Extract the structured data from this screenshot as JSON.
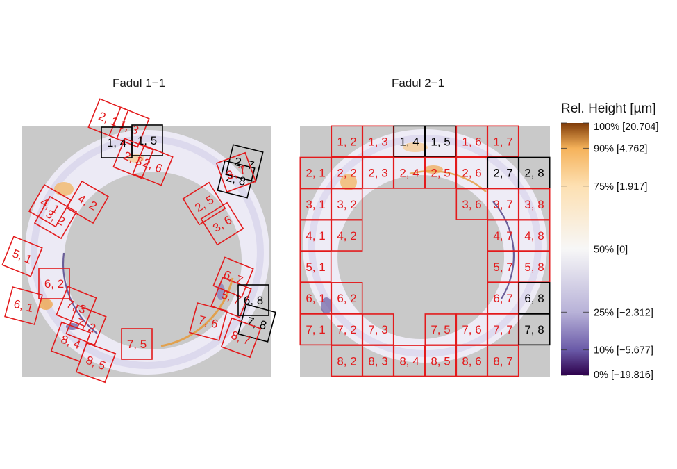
{
  "chart_data": {
    "type": "heatmap",
    "panels": [
      {
        "title": "Fadul 1−1",
        "cells": [
          {
            "label": "2, 1",
            "status": "fail"
          },
          {
            "label": "1, 3",
            "status": "fail"
          },
          {
            "label": "1, 4",
            "status": "pass"
          },
          {
            "label": "1, 5",
            "status": "pass"
          },
          {
            "label": "2, 3",
            "status": "fail"
          },
          {
            "label": "2, 6",
            "status": "fail"
          },
          {
            "label": "2, 7",
            "status": "pass"
          },
          {
            "label": "2, 8",
            "status": "pass"
          },
          {
            "label": "3, 7",
            "status": "fail"
          },
          {
            "label": "2, 5",
            "status": "fail"
          },
          {
            "label": "3, 6",
            "status": "fail"
          },
          {
            "label": "4, 1",
            "status": "fail"
          },
          {
            "label": "3, 2",
            "status": "fail"
          },
          {
            "label": "4, 2",
            "status": "fail"
          },
          {
            "label": "5, 1",
            "status": "fail"
          },
          {
            "label": "6, 2",
            "status": "fail"
          },
          {
            "label": "6, 1",
            "status": "fail"
          },
          {
            "label": "7, 3",
            "status": "fail"
          },
          {
            "label": "7, 2",
            "status": "fail"
          },
          {
            "label": "8, 4",
            "status": "fail"
          },
          {
            "label": "8, 5",
            "status": "fail"
          },
          {
            "label": "7, 5",
            "status": "fail"
          },
          {
            "label": "6, 7",
            "status": "fail"
          },
          {
            "label": "5, 7",
            "status": "fail"
          },
          {
            "label": "6, 8",
            "status": "pass"
          },
          {
            "label": "7, 6",
            "status": "fail"
          },
          {
            "label": "7, 8",
            "status": "pass"
          },
          {
            "label": "8, 7",
            "status": "fail"
          }
        ]
      },
      {
        "title": "Fadul 2−1",
        "cells": [
          {
            "row": 1,
            "col": 2,
            "label": "1, 2",
            "status": "fail"
          },
          {
            "row": 1,
            "col": 3,
            "label": "1, 3",
            "status": "fail"
          },
          {
            "row": 1,
            "col": 4,
            "label": "1, 4",
            "status": "pass"
          },
          {
            "row": 1,
            "col": 5,
            "label": "1, 5",
            "status": "pass"
          },
          {
            "row": 1,
            "col": 6,
            "label": "1, 6",
            "status": "fail"
          },
          {
            "row": 1,
            "col": 7,
            "label": "1, 7",
            "status": "fail"
          },
          {
            "row": 2,
            "col": 1,
            "label": "2, 1",
            "status": "fail"
          },
          {
            "row": 2,
            "col": 2,
            "label": "2, 2",
            "status": "fail"
          },
          {
            "row": 2,
            "col": 3,
            "label": "2, 3",
            "status": "fail"
          },
          {
            "row": 2,
            "col": 4,
            "label": "2, 4",
            "status": "fail"
          },
          {
            "row": 2,
            "col": 5,
            "label": "2, 5",
            "status": "fail"
          },
          {
            "row": 2,
            "col": 6,
            "label": "2, 6",
            "status": "fail"
          },
          {
            "row": 2,
            "col": 7,
            "label": "2, 7",
            "status": "pass"
          },
          {
            "row": 2,
            "col": 8,
            "label": "2, 8",
            "status": "pass"
          },
          {
            "row": 3,
            "col": 1,
            "label": "3, 1",
            "status": "fail"
          },
          {
            "row": 3,
            "col": 2,
            "label": "3, 2",
            "status": "fail"
          },
          {
            "row": 3,
            "col": 6,
            "label": "3, 6",
            "status": "fail"
          },
          {
            "row": 3,
            "col": 7,
            "label": "3, 7",
            "status": "fail"
          },
          {
            "row": 3,
            "col": 8,
            "label": "3, 8",
            "status": "fail"
          },
          {
            "row": 4,
            "col": 1,
            "label": "4, 1",
            "status": "fail"
          },
          {
            "row": 4,
            "col": 2,
            "label": "4, 2",
            "status": "fail"
          },
          {
            "row": 4,
            "col": 7,
            "label": "4, 7",
            "status": "fail"
          },
          {
            "row": 4,
            "col": 8,
            "label": "4, 8",
            "status": "fail"
          },
          {
            "row": 5,
            "col": 1,
            "label": "5, 1",
            "status": "fail"
          },
          {
            "row": 5,
            "col": 7,
            "label": "5, 7",
            "status": "fail"
          },
          {
            "row": 5,
            "col": 8,
            "label": "5, 8",
            "status": "fail"
          },
          {
            "row": 6,
            "col": 1,
            "label": "6, 1",
            "status": "fail"
          },
          {
            "row": 6,
            "col": 2,
            "label": "6, 2",
            "status": "fail"
          },
          {
            "row": 6,
            "col": 7,
            "label": "6, 7",
            "status": "fail"
          },
          {
            "row": 6,
            "col": 8,
            "label": "6, 8",
            "status": "pass"
          },
          {
            "row": 7,
            "col": 1,
            "label": "7, 1",
            "status": "fail"
          },
          {
            "row": 7,
            "col": 2,
            "label": "7, 2",
            "status": "fail"
          },
          {
            "row": 7,
            "col": 3,
            "label": "7, 3",
            "status": "fail"
          },
          {
            "row": 7,
            "col": 5,
            "label": "7, 5",
            "status": "fail"
          },
          {
            "row": 7,
            "col": 6,
            "label": "7, 6",
            "status": "fail"
          },
          {
            "row": 7,
            "col": 7,
            "label": "7, 7",
            "status": "fail"
          },
          {
            "row": 7,
            "col": 8,
            "label": "7, 8",
            "status": "pass"
          },
          {
            "row": 8,
            "col": 2,
            "label": "8, 2",
            "status": "fail"
          },
          {
            "row": 8,
            "col": 3,
            "label": "8, 3",
            "status": "fail"
          },
          {
            "row": 8,
            "col": 4,
            "label": "8, 4",
            "status": "fail"
          },
          {
            "row": 8,
            "col": 5,
            "label": "8, 5",
            "status": "fail"
          },
          {
            "row": 8,
            "col": 6,
            "label": "8, 6",
            "status": "fail"
          },
          {
            "row": 8,
            "col": 7,
            "label": "8, 7",
            "status": "fail"
          }
        ]
      }
    ],
    "colorbar": {
      "title": "Rel. Height [µm]",
      "ticks": [
        {
          "pct": 100,
          "label": "100% [20.704]"
        },
        {
          "pct": 90,
          "label": "90% [4.762]"
        },
        {
          "pct": 75,
          "label": "75% [1.917]"
        },
        {
          "pct": 50,
          "label": "50% [0]"
        },
        {
          "pct": 25,
          "label": "25% [−2.312]"
        },
        {
          "pct": 10,
          "label": "10% [−5.677]"
        },
        {
          "pct": 0,
          "label": "0% [−19.816]"
        }
      ],
      "stops": [
        "#2d004b",
        "#5e4fa2",
        "#b2abd2",
        "#f7f7f7",
        "#fdb863",
        "#e08214",
        "#7f3b08"
      ]
    },
    "colors": {
      "background": "#c9c9c9",
      "fail": "#e31a1c",
      "pass": "#000000",
      "fail_text": "#e31a1c",
      "pass_text": "#000000"
    }
  }
}
